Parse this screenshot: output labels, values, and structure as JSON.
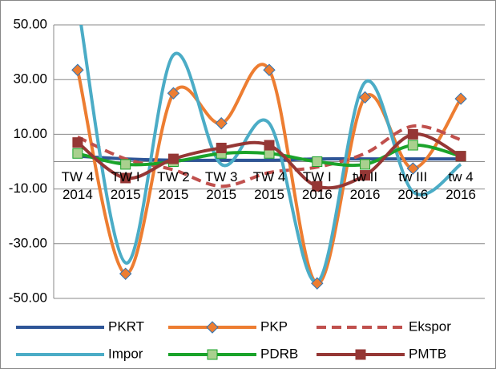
{
  "chart_data": {
    "type": "line",
    "categories": [
      "TW 4 2014",
      "TW I 2015",
      "TW 2 2015",
      "TW 3 2015",
      "TW 4 2015",
      "TW I 2016",
      "tw II 2016",
      "tw III 2016",
      "tw 4 2016"
    ],
    "series": [
      {
        "name": "PKRT",
        "color": "#2e5597",
        "values": [
          2,
          1,
          0.5,
          0.5,
          0.5,
          1,
          1,
          1,
          1
        ]
      },
      {
        "name": "PKP",
        "color": "#ed7d31",
        "marker": "diamond",
        "values": [
          33.5,
          -41,
          25,
          14,
          33.5,
          -44.5,
          23.5,
          -2.5,
          23
        ]
      },
      {
        "name": "Ekspor",
        "color": "#c0504d",
        "dashed": true,
        "values": [
          9,
          1,
          -3,
          -9,
          -4,
          -2,
          3,
          13,
          8
        ]
      },
      {
        "name": "Impor",
        "color": "#4bacc6",
        "values": [
          58,
          -37,
          39,
          -1,
          14,
          -44,
          29,
          -11,
          -1
        ]
      },
      {
        "name": "PDRB",
        "color": "#1aa32a",
        "marker": "square",
        "markerColor": "#a9d08e",
        "values": [
          3,
          -1,
          0,
          3,
          3,
          0,
          -1,
          6,
          2
        ]
      },
      {
        "name": "PMTB",
        "color": "#953735",
        "marker": "square",
        "values": [
          7,
          -6,
          1,
          5,
          6,
          -9,
          -5,
          10,
          2
        ]
      }
    ],
    "ylim": [
      -50,
      50
    ],
    "yticks": [
      {
        "value": -50,
        "label": "-50.00"
      },
      {
        "value": -30,
        "label": "-30.00"
      },
      {
        "value": -10,
        "label": "-10.00"
      },
      {
        "value": 10,
        "label": "10.00"
      },
      {
        "value": 30,
        "label": "30.00"
      },
      {
        "value": 50,
        "label": "50.00"
      }
    ],
    "grid": true
  }
}
